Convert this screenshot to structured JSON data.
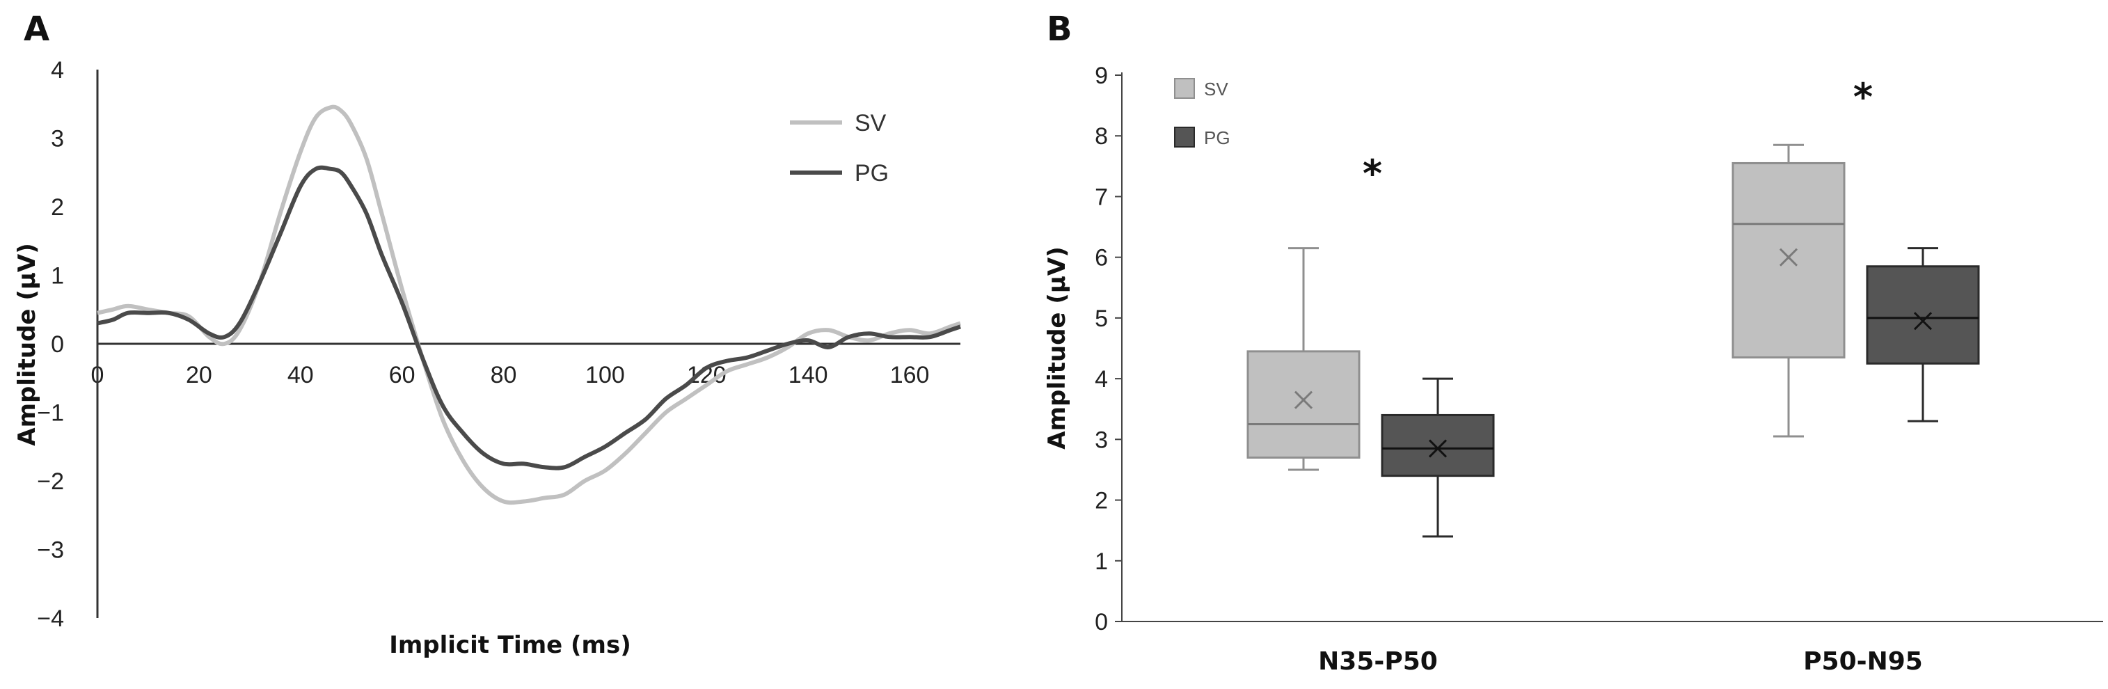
{
  "chart_data": [
    {
      "panel": "A",
      "type": "line",
      "xlabel": "Implicit Time (ms)",
      "ylabel": "Amplitude (µV)",
      "xlim": [
        0,
        170
      ],
      "ylim": [
        -4,
        4
      ],
      "xticks": [
        0,
        20,
        40,
        60,
        80,
        100,
        120,
        140,
        160
      ],
      "yticks": [
        4,
        3,
        2,
        1,
        0,
        -1,
        -2,
        -3,
        -4
      ],
      "yticklabels": [
        "4",
        "3",
        "2",
        "1",
        "0",
        "−1",
        "−2",
        "−3",
        "−4"
      ],
      "legend": [
        "SV",
        "PG"
      ],
      "series": [
        {
          "name": "SV",
          "color": "#c0c0c0",
          "x": [
            0,
            3,
            6,
            10,
            14,
            18,
            22,
            25,
            28,
            32,
            36,
            40,
            43,
            46,
            48,
            50,
            53,
            56,
            60,
            64,
            68,
            72,
            76,
            80,
            84,
            88,
            92,
            96,
            100,
            104,
            108,
            112,
            116,
            120,
            124,
            128,
            132,
            136,
            140,
            144,
            148,
            152,
            156,
            160,
            164,
            168,
            170
          ],
          "y": [
            0.45,
            0.5,
            0.55,
            0.5,
            0.45,
            0.4,
            0.1,
            0.0,
            0.2,
            0.9,
            1.9,
            2.8,
            3.3,
            3.45,
            3.4,
            3.2,
            2.7,
            1.9,
            0.8,
            -0.2,
            -1.1,
            -1.7,
            -2.1,
            -2.3,
            -2.3,
            -2.25,
            -2.2,
            -2.0,
            -1.85,
            -1.6,
            -1.3,
            -1.0,
            -0.8,
            -0.6,
            -0.4,
            -0.3,
            -0.2,
            -0.05,
            0.15,
            0.2,
            0.1,
            0.05,
            0.15,
            0.2,
            0.15,
            0.25,
            0.3
          ]
        },
        {
          "name": "PG",
          "color": "#4a4a4a",
          "x": [
            0,
            3,
            6,
            10,
            14,
            18,
            22,
            25,
            28,
            32,
            36,
            40,
            43,
            46,
            48,
            50,
            53,
            56,
            60,
            64,
            68,
            72,
            76,
            80,
            84,
            88,
            92,
            96,
            100,
            104,
            108,
            112,
            116,
            120,
            124,
            128,
            132,
            136,
            140,
            144,
            148,
            152,
            156,
            160,
            164,
            168,
            170
          ],
          "y": [
            0.3,
            0.35,
            0.45,
            0.45,
            0.45,
            0.35,
            0.15,
            0.1,
            0.3,
            0.9,
            1.6,
            2.3,
            2.55,
            2.55,
            2.5,
            2.3,
            1.9,
            1.3,
            0.6,
            -0.2,
            -0.9,
            -1.3,
            -1.6,
            -1.75,
            -1.75,
            -1.8,
            -1.8,
            -1.65,
            -1.5,
            -1.3,
            -1.1,
            -0.8,
            -0.6,
            -0.35,
            -0.25,
            -0.2,
            -0.1,
            0.0,
            0.05,
            -0.05,
            0.1,
            0.15,
            0.1,
            0.1,
            0.1,
            0.2,
            0.25
          ]
        }
      ]
    },
    {
      "panel": "B",
      "type": "boxplot",
      "xlabel": "",
      "ylabel": "Amplitude (µV)",
      "ylim": [
        0,
        9
      ],
      "yticks": [
        0,
        1,
        2,
        3,
        4,
        5,
        6,
        7,
        8,
        9
      ],
      "categories": [
        "N35-P50",
        "P50-N95"
      ],
      "legend": [
        "SV",
        "PG"
      ],
      "significance": [
        "*",
        "*"
      ],
      "series": [
        {
          "name": "SV",
          "color": "#c0c0c0",
          "boxes": [
            {
              "min": 2.5,
              "q1": 2.7,
              "median": 3.25,
              "q3": 4.45,
              "max": 6.15,
              "mean": 3.65
            },
            {
              "min": 3.05,
              "q1": 4.35,
              "median": 6.55,
              "q3": 7.55,
              "max": 7.85,
              "mean": 6.0
            }
          ]
        },
        {
          "name": "PG",
          "color": "#555555",
          "boxes": [
            {
              "min": 1.4,
              "q1": 2.4,
              "median": 2.85,
              "q3": 3.4,
              "max": 4.0,
              "mean": 2.85
            },
            {
              "min": 3.3,
              "q1": 4.25,
              "median": 5.0,
              "q3": 5.85,
              "max": 6.15,
              "mean": 4.95
            }
          ]
        }
      ]
    }
  ]
}
